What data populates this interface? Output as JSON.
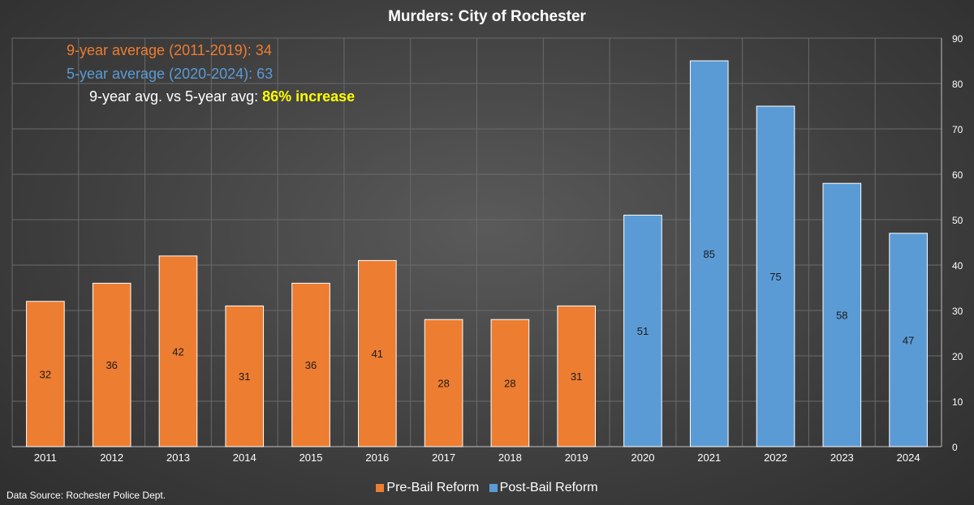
{
  "colors": {
    "pre": "#ed7d31",
    "post": "#5b9bd5",
    "highlight": "#ffff00",
    "grid": "#6a6a6a",
    "text": "#ffffff"
  },
  "annotations": {
    "nine_year_avg": "9-year average (2011-2019): 34",
    "five_year_avg": "5-year average (2020-2024): 63",
    "comparison_label": "9-year avg. vs 5-year avg: ",
    "comparison_value": "86% increase"
  },
  "source": "Data Source: Rochester Police Dept.",
  "chart_data": {
    "type": "bar",
    "title": "Murders: City of Rochester",
    "categories": [
      "2011",
      "2012",
      "2013",
      "2014",
      "2015",
      "2016",
      "2017",
      "2018",
      "2019",
      "2020",
      "2021",
      "2022",
      "2023",
      "2024"
    ],
    "series": [
      {
        "name": "Pre-Bail Reform",
        "values": [
          32,
          36,
          42,
          31,
          36,
          41,
          28,
          28,
          31,
          null,
          null,
          null,
          null,
          null
        ]
      },
      {
        "name": "Post-Bail Reform",
        "values": [
          null,
          null,
          null,
          null,
          null,
          null,
          null,
          null,
          null,
          51,
          85,
          75,
          58,
          47
        ]
      }
    ],
    "ylim": [
      0,
      90
    ],
    "yticks": [
      0,
      10,
      20,
      30,
      40,
      50,
      60,
      70,
      80,
      90
    ],
    "y_axis_side": "right",
    "grid": true,
    "legend": "bottom-center",
    "data_labels": true
  }
}
